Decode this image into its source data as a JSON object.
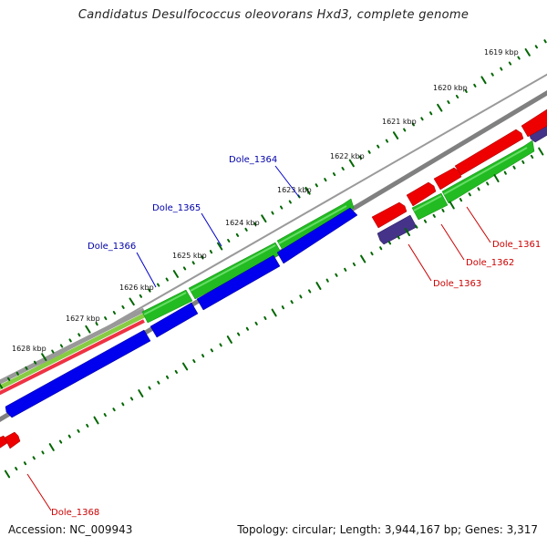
{
  "title": "Candidatus Desulfococcus oleovorans Hxd3, complete genome",
  "footer": {
    "accession": "Accession: NC_009943",
    "topology": "Topology: circular; Length: 3,944,167 bp; Genes: 3,317"
  },
  "colors": {
    "backbone": "#808080",
    "forward_cds": "#22bb22",
    "reverse_cds": "#0000ee",
    "forward_gene": "#ee0000",
    "reverse_gene": "#443388",
    "tick": "#006600",
    "label_blue": "#0000aa",
    "label_red": "#cc0000"
  },
  "ticks": [
    {
      "label": "1619 kbp"
    },
    {
      "label": "1620 kbp"
    },
    {
      "label": "1621 kbp"
    },
    {
      "label": "1622 kbp"
    },
    {
      "label": "1623 kbp"
    },
    {
      "label": "1624 kbp"
    },
    {
      "label": "1625 kbp"
    },
    {
      "label": "1626 kbp"
    },
    {
      "label": "1627 kbp"
    },
    {
      "label": "1628 kbp"
    }
  ],
  "gene_labels": [
    {
      "name": "Dole_1364",
      "color": "blue"
    },
    {
      "name": "Dole_1365",
      "color": "blue"
    },
    {
      "name": "Dole_1366",
      "color": "blue"
    },
    {
      "name": "Dole_1361",
      "color": "red"
    },
    {
      "name": "Dole_1362",
      "color": "red"
    },
    {
      "name": "Dole_1363",
      "color": "red"
    },
    {
      "name": "Dole_1368",
      "color": "red"
    }
  ]
}
